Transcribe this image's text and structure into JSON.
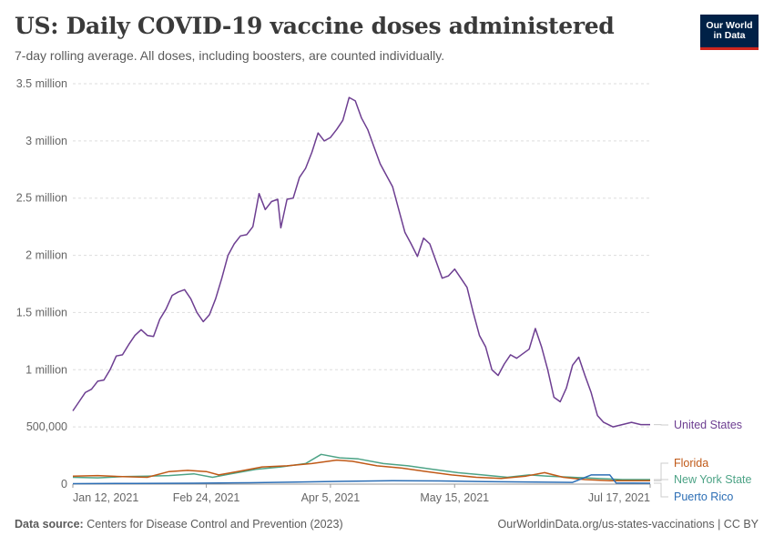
{
  "header": {
    "title": "US: Daily COVID-19 vaccine doses administered",
    "subtitle": "7-day rolling average. All doses, including boosters, are counted individually."
  },
  "logo": {
    "line1": "Our World",
    "line2": "in Data",
    "bg_color": "#002147",
    "accent_color": "#ce261e"
  },
  "footer": {
    "source_label": "Data source:",
    "source_text": "Centers for Disease Control and Prevention (2023)",
    "right_text": "OurWorldinData.org/us-states-vaccinations | CC BY"
  },
  "chart_data": {
    "type": "line",
    "title": "US: Daily COVID-19 vaccine doses administered",
    "subtitle": "7-day rolling average. All doses, including boosters, are counted individually.",
    "x_start": "2021-01-12",
    "x_end": "2021-07-17",
    "x_ticks": [
      {
        "date": "2021-01-12",
        "label": "Jan 12, 2021"
      },
      {
        "date": "2021-02-24",
        "label": "Feb 24, 2021"
      },
      {
        "date": "2021-04-05",
        "label": "Apr 5, 2021"
      },
      {
        "date": "2021-05-15",
        "label": "May 15, 2021"
      },
      {
        "date": "2021-07-17",
        "label": "Jul 17, 2021"
      }
    ],
    "y_ticks": [
      {
        "value": 0,
        "label": "0"
      },
      {
        "value": 500000,
        "label": "500,000"
      },
      {
        "value": 1000000,
        "label": "1 million"
      },
      {
        "value": 1500000,
        "label": "1.5 million"
      },
      {
        "value": 2000000,
        "label": "2 million"
      },
      {
        "value": 2500000,
        "label": "2.5 million"
      },
      {
        "value": 3000000,
        "label": "3 million"
      },
      {
        "value": 3500000,
        "label": "3.5 million"
      }
    ],
    "ylim": [
      0,
      3500000
    ],
    "grid": true,
    "legend_position": "right (labels at line ends)",
    "series": [
      {
        "name": "United States",
        "color": "#6d3e91",
        "points": [
          [
            "2021-01-12",
            640000
          ],
          [
            "2021-01-14",
            720000
          ],
          [
            "2021-01-16",
            800000
          ],
          [
            "2021-01-18",
            830000
          ],
          [
            "2021-01-20",
            900000
          ],
          [
            "2021-01-22",
            910000
          ],
          [
            "2021-01-24",
            1000000
          ],
          [
            "2021-01-26",
            1120000
          ],
          [
            "2021-01-28",
            1130000
          ],
          [
            "2021-01-30",
            1220000
          ],
          [
            "2021-02-01",
            1300000
          ],
          [
            "2021-02-03",
            1350000
          ],
          [
            "2021-02-05",
            1300000
          ],
          [
            "2021-02-07",
            1290000
          ],
          [
            "2021-02-09",
            1440000
          ],
          [
            "2021-02-11",
            1530000
          ],
          [
            "2021-02-13",
            1650000
          ],
          [
            "2021-02-15",
            1680000
          ],
          [
            "2021-02-17",
            1700000
          ],
          [
            "2021-02-19",
            1620000
          ],
          [
            "2021-02-21",
            1500000
          ],
          [
            "2021-02-23",
            1420000
          ],
          [
            "2021-02-25",
            1480000
          ],
          [
            "2021-02-27",
            1620000
          ],
          [
            "2021-03-01",
            1800000
          ],
          [
            "2021-03-03",
            2000000
          ],
          [
            "2021-03-05",
            2100000
          ],
          [
            "2021-03-07",
            2170000
          ],
          [
            "2021-03-09",
            2180000
          ],
          [
            "2021-03-11",
            2250000
          ],
          [
            "2021-03-13",
            2540000
          ],
          [
            "2021-03-15",
            2400000
          ],
          [
            "2021-03-17",
            2470000
          ],
          [
            "2021-03-19",
            2490000
          ],
          [
            "2021-03-20",
            2240000
          ],
          [
            "2021-03-22",
            2490000
          ],
          [
            "2021-03-24",
            2500000
          ],
          [
            "2021-03-26",
            2680000
          ],
          [
            "2021-03-28",
            2760000
          ],
          [
            "2021-03-30",
            2900000
          ],
          [
            "2021-04-01",
            3070000
          ],
          [
            "2021-04-03",
            3000000
          ],
          [
            "2021-04-05",
            3030000
          ],
          [
            "2021-04-07",
            3100000
          ],
          [
            "2021-04-09",
            3180000
          ],
          [
            "2021-04-11",
            3380000
          ],
          [
            "2021-04-13",
            3350000
          ],
          [
            "2021-04-15",
            3200000
          ],
          [
            "2021-04-17",
            3100000
          ],
          [
            "2021-04-19",
            2950000
          ],
          [
            "2021-04-21",
            2800000
          ],
          [
            "2021-04-23",
            2700000
          ],
          [
            "2021-04-25",
            2600000
          ],
          [
            "2021-04-27",
            2400000
          ],
          [
            "2021-04-29",
            2200000
          ],
          [
            "2021-05-01",
            2100000
          ],
          [
            "2021-05-03",
            1990000
          ],
          [
            "2021-05-05",
            2150000
          ],
          [
            "2021-05-07",
            2100000
          ],
          [
            "2021-05-09",
            1950000
          ],
          [
            "2021-05-11",
            1800000
          ],
          [
            "2021-05-13",
            1820000
          ],
          [
            "2021-05-15",
            1880000
          ],
          [
            "2021-05-17",
            1800000
          ],
          [
            "2021-05-19",
            1720000
          ],
          [
            "2021-05-21",
            1500000
          ],
          [
            "2021-05-23",
            1300000
          ],
          [
            "2021-05-25",
            1200000
          ],
          [
            "2021-05-27",
            1000000
          ],
          [
            "2021-05-29",
            950000
          ],
          [
            "2021-05-31",
            1050000
          ],
          [
            "2021-06-02",
            1130000
          ],
          [
            "2021-06-04",
            1100000
          ],
          [
            "2021-06-06",
            1140000
          ],
          [
            "2021-06-08",
            1180000
          ],
          [
            "2021-06-10",
            1360000
          ],
          [
            "2021-06-12",
            1200000
          ],
          [
            "2021-06-14",
            1000000
          ],
          [
            "2021-06-16",
            760000
          ],
          [
            "2021-06-18",
            720000
          ],
          [
            "2021-06-20",
            840000
          ],
          [
            "2021-06-22",
            1040000
          ],
          [
            "2021-06-24",
            1110000
          ],
          [
            "2021-06-26",
            950000
          ],
          [
            "2021-06-28",
            800000
          ],
          [
            "2021-06-30",
            600000
          ],
          [
            "2021-07-02",
            540000
          ],
          [
            "2021-07-05",
            500000
          ],
          [
            "2021-07-08",
            520000
          ],
          [
            "2021-07-11",
            540000
          ],
          [
            "2021-07-14",
            520000
          ],
          [
            "2021-07-17",
            520000
          ]
        ]
      },
      {
        "name": "Florida",
        "color": "#c05917",
        "points": [
          [
            "2021-01-12",
            70000
          ],
          [
            "2021-01-20",
            75000
          ],
          [
            "2021-01-28",
            65000
          ],
          [
            "2021-02-05",
            60000
          ],
          [
            "2021-02-12",
            110000
          ],
          [
            "2021-02-18",
            120000
          ],
          [
            "2021-02-24",
            110000
          ],
          [
            "2021-02-28",
            80000
          ],
          [
            "2021-03-06",
            110000
          ],
          [
            "2021-03-14",
            150000
          ],
          [
            "2021-03-22",
            160000
          ],
          [
            "2021-03-30",
            180000
          ],
          [
            "2021-04-07",
            210000
          ],
          [
            "2021-04-12",
            200000
          ],
          [
            "2021-04-20",
            160000
          ],
          [
            "2021-04-28",
            140000
          ],
          [
            "2021-05-06",
            110000
          ],
          [
            "2021-05-14",
            80000
          ],
          [
            "2021-05-22",
            60000
          ],
          [
            "2021-05-30",
            50000
          ],
          [
            "2021-06-07",
            70000
          ],
          [
            "2021-06-13",
            100000
          ],
          [
            "2021-06-19",
            60000
          ],
          [
            "2021-06-26",
            40000
          ],
          [
            "2021-07-04",
            30000
          ],
          [
            "2021-07-10",
            30000
          ],
          [
            "2021-07-17",
            30000
          ]
        ]
      },
      {
        "name": "New York State",
        "color": "#4da386",
        "points": [
          [
            "2021-01-12",
            60000
          ],
          [
            "2021-01-20",
            55000
          ],
          [
            "2021-01-28",
            65000
          ],
          [
            "2021-02-05",
            70000
          ],
          [
            "2021-02-12",
            75000
          ],
          [
            "2021-02-20",
            90000
          ],
          [
            "2021-02-26",
            60000
          ],
          [
            "2021-03-04",
            90000
          ],
          [
            "2021-03-12",
            130000
          ],
          [
            "2021-03-20",
            150000
          ],
          [
            "2021-03-28",
            180000
          ],
          [
            "2021-04-02",
            260000
          ],
          [
            "2021-04-08",
            230000
          ],
          [
            "2021-04-14",
            220000
          ],
          [
            "2021-04-22",
            180000
          ],
          [
            "2021-04-30",
            160000
          ],
          [
            "2021-05-08",
            130000
          ],
          [
            "2021-05-16",
            100000
          ],
          [
            "2021-05-24",
            80000
          ],
          [
            "2021-06-01",
            60000
          ],
          [
            "2021-06-08",
            80000
          ],
          [
            "2021-06-14",
            70000
          ],
          [
            "2021-06-22",
            60000
          ],
          [
            "2021-06-30",
            50000
          ],
          [
            "2021-07-08",
            40000
          ],
          [
            "2021-07-17",
            40000
          ]
        ]
      },
      {
        "name": "Puerto Rico",
        "color": "#2c6eb5",
        "points": [
          [
            "2021-01-12",
            4000
          ],
          [
            "2021-02-01",
            6000
          ],
          [
            "2021-02-20",
            8000
          ],
          [
            "2021-03-10",
            12000
          ],
          [
            "2021-03-25",
            18000
          ],
          [
            "2021-04-10",
            25000
          ],
          [
            "2021-04-25",
            30000
          ],
          [
            "2021-05-10",
            28000
          ],
          [
            "2021-05-25",
            22000
          ],
          [
            "2021-06-10",
            18000
          ],
          [
            "2021-06-22",
            15000
          ],
          [
            "2021-06-28",
            80000
          ],
          [
            "2021-07-04",
            80000
          ],
          [
            "2021-07-06",
            10000
          ],
          [
            "2021-07-17",
            8000
          ]
        ]
      }
    ]
  }
}
